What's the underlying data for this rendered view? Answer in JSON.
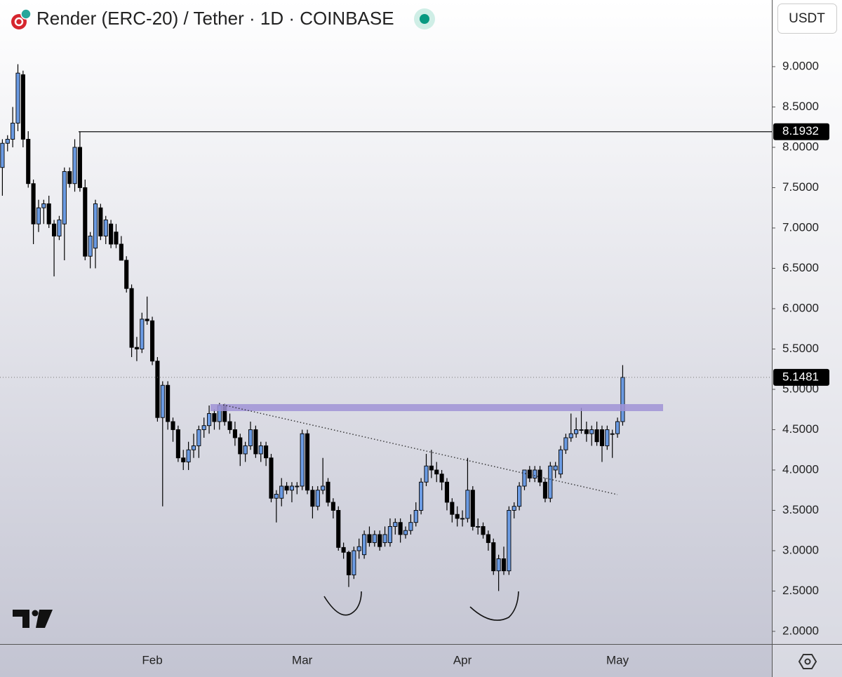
{
  "chart_data": {
    "type": "candlestick",
    "title": "Render (ERC-20) / Tether · 1D · COINBASE",
    "currency": "USDT",
    "categories": [
      null,
      null,
      null,
      null,
      null,
      null,
      null,
      null,
      null,
      null,
      null,
      null,
      null,
      null,
      null,
      null,
      null,
      null,
      null,
      null,
      null,
      null,
      null,
      null,
      null,
      null,
      null,
      null,
      null,
      "Feb",
      null,
      null,
      null,
      null,
      null,
      null,
      null,
      null,
      null,
      null,
      null,
      null,
      null,
      null,
      null,
      null,
      null,
      null,
      null,
      null,
      null,
      null,
      null,
      null,
      null,
      null,
      null,
      null,
      "Mar",
      null,
      null,
      null,
      null,
      null,
      null,
      null,
      null,
      null,
      null,
      null,
      null,
      null,
      null,
      null,
      null,
      null,
      null,
      null,
      null,
      null,
      null,
      null,
      null,
      null,
      null,
      null,
      null,
      null,
      null,
      "Apr",
      null,
      null,
      null,
      null,
      null,
      null,
      null,
      null,
      null,
      null,
      null,
      null,
      null,
      null,
      null,
      null,
      null,
      null,
      null,
      null,
      null,
      null,
      null,
      null,
      null,
      null,
      null,
      null,
      null,
      "May",
      null
    ],
    "open": [
      7.75,
      8.05,
      8.1,
      8.3,
      8.9,
      8.1,
      7.55,
      7.05,
      7.25,
      7.3,
      7.05,
      6.9,
      7.05,
      7.7,
      7.55,
      8.0,
      7.5,
      6.65,
      6.75,
      7.25,
      6.9,
      7.05,
      6.95,
      6.8,
      6.6,
      6.25,
      5.52,
      5.5,
      5.87,
      5.85,
      5.35,
      4.65,
      5.05,
      4.6,
      4.5,
      4.15,
      4.1,
      4.25,
      4.3,
      4.5,
      4.55,
      4.7,
      4.6,
      4.8,
      4.6,
      4.5,
      4.4,
      4.2,
      4.3,
      4.5,
      4.2,
      4.3,
      4.15,
      3.65,
      3.65,
      3.8,
      3.75,
      3.8,
      3.8,
      4.45,
      3.75,
      3.55,
      3.75,
      3.85,
      3.6,
      3.5,
      3.04,
      2.98,
      2.7,
      3.0,
      2.95,
      3.2,
      3.1,
      3.2,
      3.1,
      3.1,
      3.3,
      3.35,
      3.2,
      3.25,
      3.35,
      3.5,
      3.85,
      4.05,
      4.0,
      3.95,
      3.85,
      3.6,
      3.45,
      3.4,
      3.4,
      3.75,
      3.3,
      3.3,
      3.2,
      3.1,
      2.75,
      2.9,
      2.75,
      3.5,
      3.55,
      3.8,
      4.0,
      3.9,
      4.0,
      3.85,
      3.65,
      4.0,
      3.95,
      4.25,
      4.4,
      4.45,
      4.5,
      4.5,
      4.45,
      4.5,
      4.5,
      4.3,
      4.45,
      4.45,
      4.6
    ],
    "high": [
      8.1,
      8.15,
      8.5,
      9.03,
      8.95,
      8.2,
      7.6,
      7.35,
      7.35,
      7.4,
      7.1,
      7.15,
      7.75,
      7.75,
      8.1,
      8.1932,
      7.6,
      6.95,
      7.35,
      7.3,
      7.15,
      7.1,
      7.05,
      6.9,
      6.65,
      6.3,
      5.65,
      5.95,
      6.15,
      5.9,
      5.4,
      5.1,
      5.1,
      4.65,
      4.55,
      4.25,
      4.35,
      4.45,
      4.55,
      4.65,
      4.8,
      4.75,
      4.83,
      4.82,
      4.7,
      4.6,
      4.45,
      4.35,
      4.6,
      4.55,
      4.35,
      4.35,
      4.2,
      3.75,
      3.9,
      3.85,
      3.85,
      3.85,
      4.5,
      4.5,
      3.8,
      3.8,
      4.15,
      3.9,
      3.65,
      3.55,
      3.1,
      3.0,
      3.05,
      3.15,
      3.25,
      3.3,
      3.25,
      3.25,
      3.3,
      3.4,
      3.4,
      3.4,
      3.3,
      3.45,
      3.6,
      3.9,
      4.2,
      4.25,
      4.1,
      4.0,
      3.9,
      3.65,
      3.55,
      3.5,
      4.15,
      3.8,
      3.4,
      3.35,
      3.25,
      3.15,
      2.95,
      3.05,
      3.55,
      3.6,
      3.85,
      4.0,
      4.05,
      4.05,
      4.05,
      3.9,
      4.1,
      4.1,
      4.3,
      4.45,
      4.7,
      4.65,
      4.77,
      4.6,
      4.55,
      4.6,
      4.55,
      4.55,
      4.5,
      4.65,
      5.3
    ],
    "low": [
      7.4,
      7.95,
      8.0,
      8.2,
      8.0,
      7.5,
      6.8,
      6.95,
      7.05,
      7.0,
      6.4,
      6.85,
      6.6,
      7.5,
      7.45,
      7.45,
      6.6,
      6.5,
      6.5,
      6.85,
      6.8,
      6.75,
      6.75,
      6.6,
      6.2,
      5.4,
      5.35,
      5.45,
      5.8,
      5.3,
      4.6,
      3.55,
      4.5,
      4.35,
      4.1,
      4.0,
      4.0,
      4.15,
      4.15,
      4.4,
      4.45,
      4.5,
      4.5,
      4.55,
      4.45,
      4.3,
      4.05,
      4.1,
      4.25,
      4.15,
      4.1,
      4.05,
      3.6,
      3.35,
      3.55,
      3.7,
      3.6,
      3.7,
      3.75,
      3.7,
      3.4,
      3.5,
      3.7,
      3.55,
      3.4,
      3.0,
      2.9,
      2.55,
      2.65,
      2.9,
      2.9,
      3.05,
      3.05,
      3.0,
      3.05,
      3.05,
      3.2,
      3.1,
      3.15,
      3.2,
      3.3,
      3.45,
      3.8,
      3.9,
      3.85,
      3.75,
      3.5,
      3.35,
      3.3,
      3.3,
      3.35,
      3.25,
      3.2,
      3.15,
      3.0,
      2.7,
      2.5,
      2.7,
      2.7,
      3.4,
      3.5,
      3.75,
      3.85,
      3.85,
      3.8,
      3.6,
      3.6,
      3.9,
      3.9,
      4.2,
      4.35,
      4.4,
      4.45,
      4.35,
      4.3,
      4.3,
      4.1,
      4.25,
      4.15,
      4.4,
      4.55
    ],
    "close": [
      8.05,
      8.1,
      8.3,
      8.92,
      8.1,
      7.55,
      7.05,
      7.25,
      7.3,
      7.05,
      6.9,
      7.1,
      7.7,
      7.55,
      8.0,
      7.5,
      6.65,
      6.9,
      7.3,
      6.9,
      7.1,
      6.8,
      6.8,
      6.6,
      6.25,
      5.52,
      5.5,
      5.87,
      5.85,
      5.35,
      4.65,
      5.05,
      4.6,
      4.5,
      4.15,
      4.1,
      4.25,
      4.3,
      4.5,
      4.55,
      4.7,
      4.6,
      4.8,
      4.6,
      4.5,
      4.4,
      4.2,
      4.3,
      4.5,
      4.2,
      4.3,
      4.15,
      3.65,
      3.7,
      3.8,
      3.75,
      3.8,
      3.8,
      4.45,
      3.75,
      3.55,
      3.75,
      3.8,
      3.6,
      3.5,
      3.04,
      2.98,
      2.7,
      3.0,
      3.05,
      3.2,
      3.1,
      3.2,
      3.05,
      3.2,
      3.3,
      3.35,
      3.2,
      3.25,
      3.35,
      3.5,
      3.85,
      4.05,
      4.0,
      3.95,
      3.85,
      3.6,
      3.45,
      3.4,
      3.4,
      3.75,
      3.3,
      3.3,
      3.2,
      3.1,
      2.75,
      2.9,
      2.75,
      3.5,
      3.55,
      3.8,
      4.0,
      3.9,
      4.0,
      3.85,
      3.65,
      4.05,
      4.05,
      4.25,
      4.4,
      4.45,
      4.5,
      4.5,
      4.45,
      4.5,
      4.35,
      4.3,
      4.5,
      4.45,
      4.6,
      5.1481
    ],
    "up_color": "#6b9be3",
    "down_color": "#000000",
    "ylim": [
      1.843,
      9.826
    ],
    "yticks": [
      {
        "value": 2,
        "label": "2.0000"
      },
      {
        "value": 2.5,
        "label": "2.5000"
      },
      {
        "value": 3,
        "label": "3.0000"
      },
      {
        "value": 3.5,
        "label": "3.5000"
      },
      {
        "value": 4,
        "label": "4.0000"
      },
      {
        "value": 4.5,
        "label": "4.5000"
      },
      {
        "value": 5,
        "label": "5.0000"
      },
      {
        "value": 5.5,
        "label": "5.5000"
      },
      {
        "value": 6,
        "label": "6.0000"
      },
      {
        "value": 6.5,
        "label": "6.5000"
      },
      {
        "value": 7,
        "label": "7.0000"
      },
      {
        "value": 7.5,
        "label": "7.5000"
      },
      {
        "value": 8,
        "label": "8.0000"
      },
      {
        "value": 8.5,
        "label": "8.5000"
      },
      {
        "value": 9,
        "label": "9.0000"
      }
    ],
    "horizontal_line": 8.1932,
    "last_price": 5.1481
  }
}
